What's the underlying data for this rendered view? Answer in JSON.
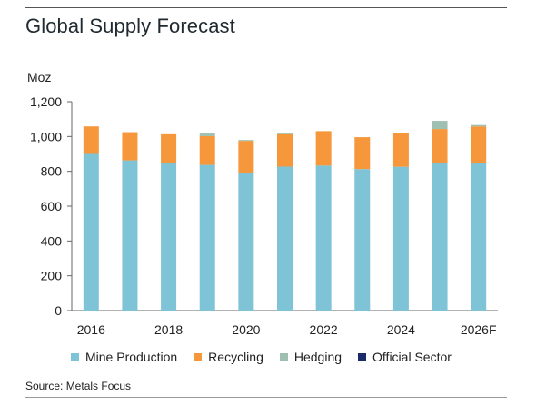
{
  "chart_data": {
    "type": "bar",
    "stacked": true,
    "title": "Global Supply Forecast",
    "ylabel": "Moz",
    "ylim": [
      0,
      1200
    ],
    "yticks": [
      "0",
      "200",
      "400",
      "600",
      "800",
      "1,000",
      "1,200"
    ],
    "ytick_values": [
      0,
      200,
      400,
      600,
      800,
      1000,
      1200
    ],
    "categories": [
      "2016",
      "2017",
      "2018",
      "2019",
      "2020",
      "2021",
      "2022",
      "2023",
      "2024",
      "2025",
      "2026F"
    ],
    "xtick_labels": [
      "2016",
      "",
      "2018",
      "",
      "2020",
      "",
      "2022",
      "",
      "2024",
      "",
      "2026F"
    ],
    "series": [
      {
        "name": "Mine Production",
        "color": "#7ec3d6",
        "values": [
          900,
          863,
          850,
          837,
          790,
          827,
          833,
          813,
          826,
          848,
          848
        ]
      },
      {
        "name": "Recycling",
        "color": "#f5973a",
        "values": [
          158,
          162,
          163,
          165,
          185,
          186,
          198,
          183,
          194,
          195,
          210
        ]
      },
      {
        "name": "Hedging",
        "color": "#9fbfb0",
        "values": [
          0,
          0,
          0,
          15,
          5,
          5,
          0,
          0,
          0,
          47,
          8
        ]
      },
      {
        "name": "Official Sector",
        "color": "#1b2a6b",
        "values": [
          0,
          0,
          0,
          0,
          0,
          0,
          0,
          0,
          0,
          0,
          0
        ]
      }
    ],
    "legend_position": "bottom",
    "grid": false,
    "source": "Source: Metals Focus"
  }
}
